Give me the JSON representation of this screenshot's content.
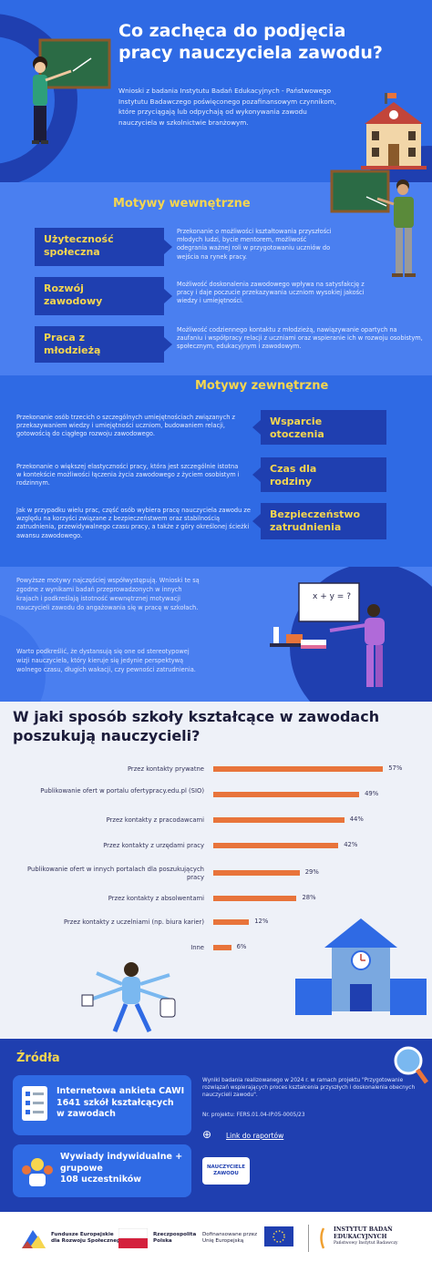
{
  "header": {
    "title_line1": "Co zachęca do podjęcia",
    "title_line2": "pracy nauczyciela zawodu?",
    "intro": "Wnioski z badania Instytutu Badań Edukacyjnych - Państwowego Instytutu Badawczego poświęconego pozafinansowym czynnikom, które przyciągają lub odpychają od wykonywania zawodu nauczyciela w szkolnictwie branżowym."
  },
  "internal": {
    "title": "Motywy wewnętrzne",
    "items": [
      {
        "label_line1": "Użyteczność",
        "label_line2": "społeczna",
        "text": "Przekonanie o możliwości kształtowania przyszłości młodych ludzi, bycie mentorem, możliwość odegrania ważnej roli w przygotowaniu uczniów do wejścia na rynek pracy."
      },
      {
        "label_line1": "Rozwój",
        "label_line2": "zawodowy",
        "text": "Możliwość doskonalenia zawodowego wpływa na satysfakcję z pracy i daje poczucie przekazywania uczniom wysokiej jakości wiedzy i umiejętności."
      },
      {
        "label_line1": "Praca z",
        "label_line2": "młodzieżą",
        "text": "Możliwość codziennego kontaktu z młodzieżą, nawiązywanie opartych na zaufaniu i współpracy relacji z uczniami oraz wspieranie ich w rozwoju osobistym, społecznym, edukacyjnym i zawodowym."
      }
    ]
  },
  "external": {
    "title": "Motywy zewnętrzne",
    "items": [
      {
        "label_line1": "Wsparcie",
        "label_line2": "otoczenia",
        "text": "Przekonanie osób trzecich o szczególnych umiejętnościach związanych z przekazywaniem wiedzy i umiejętności uczniom, budowaniem relacji, gotowością do ciągłego rozwoju zawodowego."
      },
      {
        "label_line1": "Czas dla",
        "label_line2": "rodziny",
        "text": "Przekonanie o większej elastyczności pracy, która jest szczególnie istotna w kontekście możliwości łączenia życia zawodowego z życiem osobistym i rodzinnym."
      },
      {
        "label_line1": "Bezpieczeństwo",
        "label_line2": "zatrudnienia",
        "text": "Jak w przypadku wielu prac, część osób wybiera pracę nauczyciela zawodu ze względu na korzyści związane z bezpieczeństwem oraz stabilnością zatrudnienia, przewidywalnego czasu pracy, a także z góry określonej ścieżki awansu zawodowego."
      }
    ]
  },
  "conclusion": {
    "p1": "Powyższe motywy najczęściej współwystępują. Wnioski te są zgodne z wynikami badań przeprowadzonych w innych krajach i podkreślają istotność wewnętrznej motywacji nauczycieli zawodu do angażowania się w pracę w szkołach.",
    "p2": "Warto podkreślić, że dystansują się one od stereotypowej wizji nauczyciela, który kieruje się jedynie perspektywą wolnego czasu, długich wakacji, czy pewności zatrudnienia.",
    "board_text": "x + y = ?"
  },
  "chart_data": {
    "type": "bar",
    "title_line1": "W jaki sposób szkoły kształcące w zawodach",
    "title_line2": "poszukują nauczycieli?",
    "categories": [
      "Przez kontakty prywatne",
      "Publikowanie ofert w portalu ofertypracy.edu.pl (SIO)",
      "Przez kontakty z pracodawcami",
      "Przez kontakty z urzędami pracy",
      "Publikowanie ofert w innych portalach dla poszukujących pracy",
      "Przez kontakty z absolwentami",
      "Przez kontakty z uczelniami (np. biura karier)",
      "Inne"
    ],
    "values": [
      57,
      49,
      44,
      42,
      29,
      28,
      12,
      6
    ],
    "value_labels": [
      "57%",
      "49%",
      "44%",
      "42%",
      "29%",
      "28%",
      "12%",
      "6%"
    ],
    "orientation": "horizontal",
    "color": "#e8743b"
  },
  "sources": {
    "title": "Źródła",
    "card1_line1": "Internetowa ankieta CAWI",
    "card1_line2": "1641 szkół kształcących",
    "card1_line3": "w zawodach",
    "card2_line1": "Wywiady indywidualne +",
    "card2_line2": "grupowe",
    "card2_line3": "108 uczestników",
    "note": "Wyniki badania realizowanego w 2024 r. w ramach projektu \"Przygotowanie rozwiązań wspierających proces kształcenia przyszłych i doskonalenia obecnych nauczycieli zawodu\".",
    "project_no": "Nr. projektu: FERS.01.04-IP.05-0005/23",
    "link": "Link do raportów",
    "badge_line1": "NAUCZYCIELE",
    "badge_line2": "ZAWODU"
  },
  "footer": {
    "fe_line1": "Fundusze Europejskie",
    "fe_line2": "dla Rozwoju Społecznego",
    "rp_line1": "Rzeczpospolita",
    "rp_line2": "Polska",
    "eu_line1": "Dofinansowane przez",
    "eu_line2": "Unię Europejską",
    "ibe_line1": "INSTYTUT BADAŃ",
    "ibe_line2": "EDUKACYJNYCH",
    "ibe_line3": "Państwowy Instytut Badawczy"
  },
  "colors": {
    "blue": "#2f6ae4",
    "navy": "#1f3fb0",
    "yellow": "#f6d64f",
    "orange": "#e8743b",
    "light": "#eef1f8"
  }
}
